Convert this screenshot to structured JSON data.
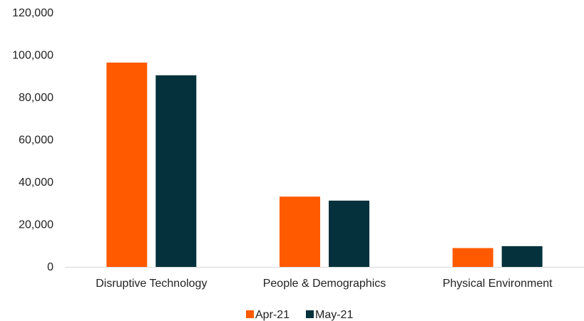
{
  "chart_data": {
    "type": "bar",
    "title": "",
    "xlabel": "",
    "ylabel": "",
    "categories": [
      "Disruptive Technology",
      "People & Demographics",
      "Physical Environment"
    ],
    "series": [
      {
        "name": "Apr-21",
        "color": "#FF5A00",
        "values": [
          96500,
          33200,
          8900
        ]
      },
      {
        "name": "May-21",
        "color": "#04313B",
        "values": [
          90500,
          31300,
          9800
        ]
      }
    ],
    "ylim": [
      0,
      120000
    ],
    "yticks": [
      "0",
      "20,000",
      "40,000",
      "60,000",
      "80,000",
      "100,000",
      "120,000"
    ],
    "ytick_values": [
      0,
      20000,
      40000,
      60000,
      80000,
      100000,
      120000
    ],
    "grid": false,
    "legend_position": "bottom-center"
  }
}
